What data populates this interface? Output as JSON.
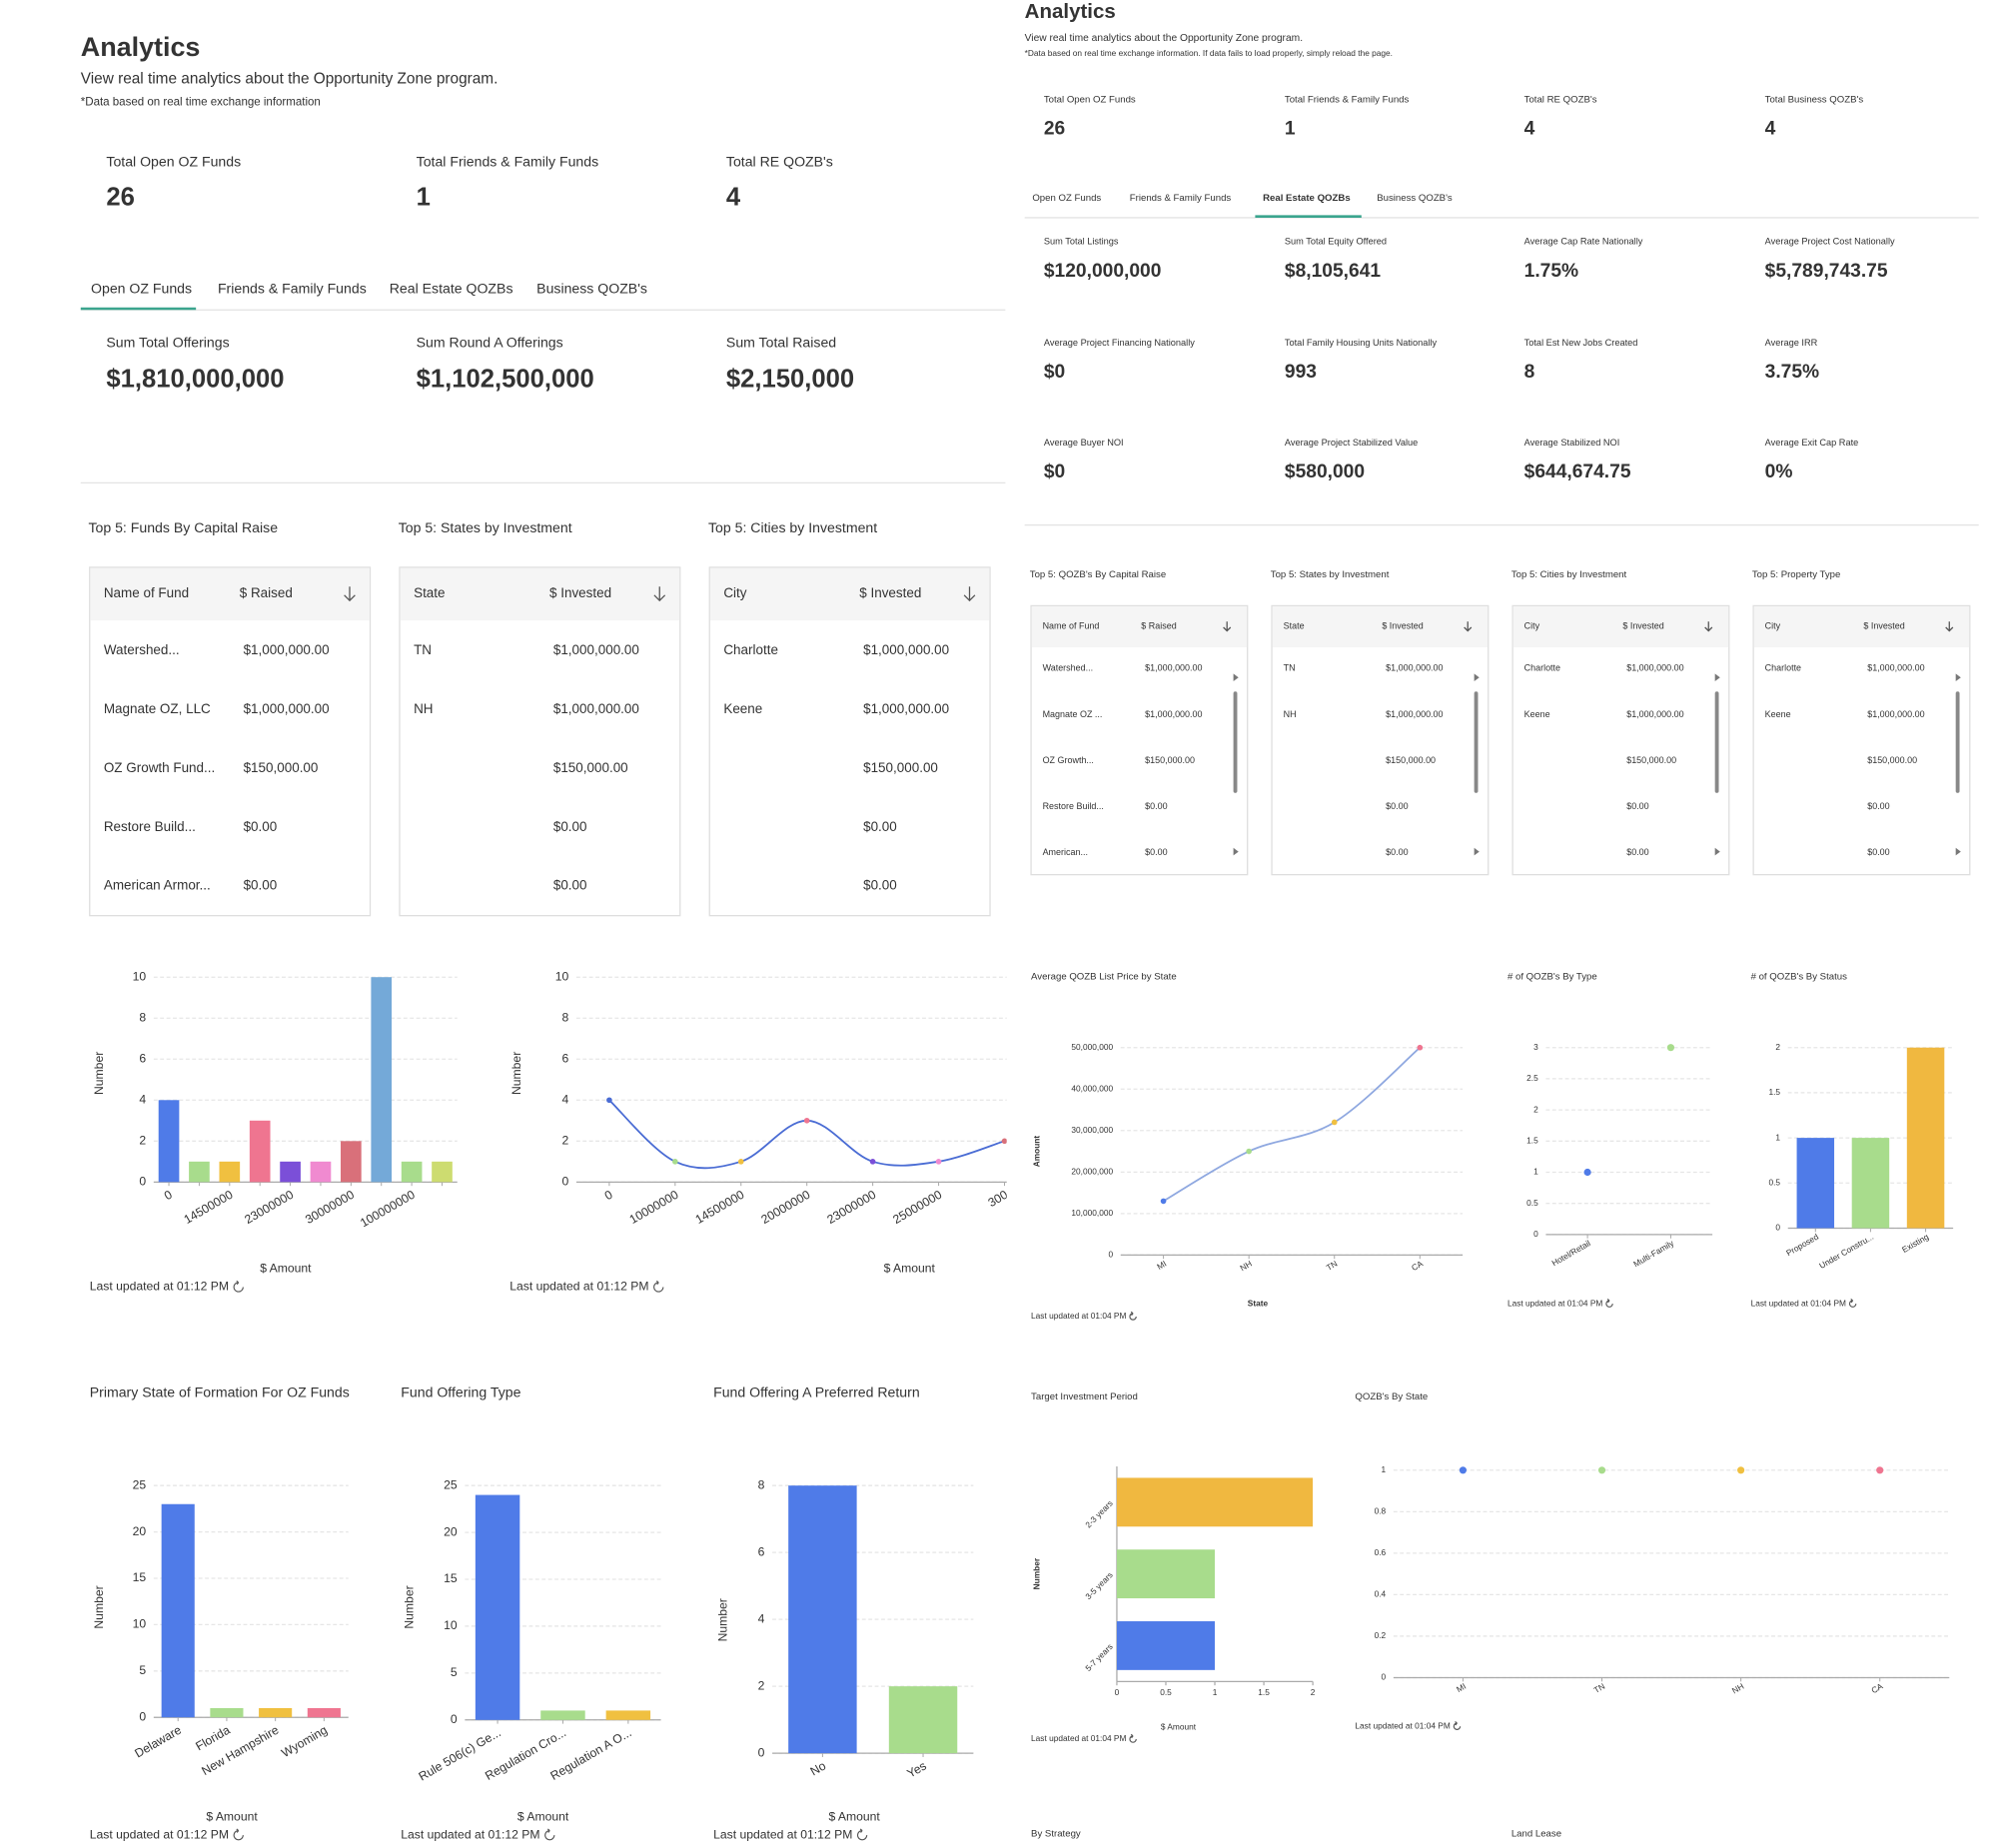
{
  "left": {
    "header": {
      "title": "Analytics",
      "subtitle": "View real time analytics about the Opportunity Zone program.",
      "note": "*Data based on real time exchange information"
    },
    "stats": [
      {
        "label": "Total Open OZ Funds",
        "value": 26
      },
      {
        "label": "Total Friends & Family Funds",
        "value": 1
      },
      {
        "label": "Total RE QOZB's",
        "value": 4
      }
    ],
    "tabs": [
      "Open OZ Funds",
      "Friends & Family Funds",
      "Real Estate QOZBs",
      "Business QOZB's"
    ],
    "metrics": [
      {
        "label": "Sum Total Offerings",
        "value": "$1,810,000,000"
      },
      {
        "label": "Sum Round A Offerings",
        "value": "$1,102,500,000"
      },
      {
        "label": "Sum Total Raised",
        "value": "$2,150,000"
      }
    ],
    "tables": [
      {
        "title": "Top 5: Funds By Capital Raise",
        "columns": [
          "Name of Fund",
          "$ Raised"
        ],
        "rows": [
          [
            "Watershed...",
            "$1,000,000.00"
          ],
          [
            "Magnate OZ, LLC",
            "$1,000,000.00"
          ],
          [
            "OZ Growth Fund...",
            "$150,000.00"
          ],
          [
            "Restore Build...",
            "$0.00"
          ],
          [
            "American Armor...",
            "$0.00"
          ]
        ]
      },
      {
        "title": "Top 5: States by Investment",
        "columns": [
          "State",
          "$ Invested"
        ],
        "rows": [
          [
            "TN",
            "$1,000,000.00"
          ],
          [
            "NH",
            "$1,000,000.00"
          ],
          [
            null,
            "$150,000.00"
          ],
          [
            null,
            "$0.00"
          ],
          [
            null,
            "$0.00"
          ]
        ]
      },
      {
        "title": "Top 5: Cities by Investment",
        "columns": [
          "City",
          "$ Invested"
        ],
        "rows": [
          [
            "Charlotte",
            "$1,000,000.00"
          ],
          [
            "Keene",
            "$1,000,000.00"
          ],
          [
            null,
            "$150,000.00"
          ],
          [
            null,
            "$0.00"
          ],
          [
            null,
            "$0.00"
          ]
        ]
      }
    ]
  },
  "right": {
    "header": {
      "title": "Analytics",
      "subtitle": "View real time analytics about the Opportunity Zone program.",
      "note": "*Data based on real time exchange information. If data fails to load properly, simply reload the page."
    },
    "stats": [
      {
        "label": "Total Open OZ Funds",
        "value": 26
      },
      {
        "label": "Total Friends & Family Funds",
        "value": 1
      },
      {
        "label": "Total RE QOZB's",
        "value": 4
      },
      {
        "label": "Total Business QOZB's",
        "value": 4
      }
    ],
    "tabs": [
      "Open OZ Funds",
      "Friends & Family Funds",
      "Real Estate QOZBs",
      "Business QOZB's"
    ],
    "metrics": [
      {
        "label": "Sum Total Listings",
        "value": "$120,000,000"
      },
      {
        "label": "Sum Total Equity Offered",
        "value": "$8,105,641"
      },
      {
        "label": "Average Cap Rate Nationally",
        "value": "1.75%"
      },
      {
        "label": "Average Project Cost Nationally",
        "value": "$5,789,743.75"
      },
      {
        "label": "Average Project Financing Nationally",
        "value": "$0"
      },
      {
        "label": "Total Family Housing Units Nationally",
        "value": "993"
      },
      {
        "label": "Total Est New Jobs Created",
        "value": "8"
      },
      {
        "label": "Average IRR",
        "value": "3.75%"
      },
      {
        "label": "Average Buyer NOI",
        "value": "$0"
      },
      {
        "label": "Average Project Stabilized Value",
        "value": "$580,000"
      },
      {
        "label": "Average Stabilized NOI",
        "value": "$644,674.75"
      },
      {
        "label": "Average Exit Cap Rate",
        "value": "0%"
      }
    ],
    "tables": [
      {
        "title": "Top 5: QOZB's By Capital Raise",
        "columns": [
          "Name of Fund",
          "$ Raised"
        ],
        "rows": [
          [
            "Watershed...",
            "$1,000,000.00"
          ],
          [
            "Magnate OZ ...",
            "$1,000,000.00"
          ],
          [
            "OZ Growth...",
            "$150,000.00"
          ],
          [
            "Restore Build...",
            "$0.00"
          ],
          [
            "American...",
            "$0.00"
          ]
        ]
      },
      {
        "title": "Top 5: States by Investment",
        "columns": [
          "State",
          "$ Invested"
        ],
        "rows": [
          [
            "TN",
            "$1,000,000.00"
          ],
          [
            "NH",
            "$1,000,000.00"
          ],
          [
            null,
            "$150,000.00"
          ],
          [
            null,
            "$0.00"
          ],
          [
            null,
            "$0.00"
          ]
        ]
      },
      {
        "title": "Top 5: Cities by Investment",
        "columns": [
          "City",
          "$ Invested"
        ],
        "rows": [
          [
            "Charlotte",
            "$1,000,000.00"
          ],
          [
            "Keene",
            "$1,000,000.00"
          ],
          [
            null,
            "$150,000.00"
          ],
          [
            null,
            "$0.00"
          ],
          [
            null,
            "$0.00"
          ]
        ]
      },
      {
        "title": "Top 5: Property Type",
        "columns": [
          "City",
          "$ Invested"
        ],
        "rows": [
          [
            "Charlotte",
            "$1,000,000.00"
          ],
          [
            "Keene",
            "$1,000,000.00"
          ],
          [
            null,
            "$150,000.00"
          ],
          [
            null,
            "$0.00"
          ],
          [
            null,
            "$0.00"
          ]
        ]
      }
    ],
    "sections": [
      "By Strategy",
      "Land Lease"
    ]
  },
  "chart_data": [
    {
      "type": "bar",
      "categories": [
        "0",
        null,
        "14500000",
        null,
        "23000000",
        null,
        "30000000",
        null,
        "100000000",
        null
      ],
      "values": [
        4,
        1,
        1,
        3,
        1,
        1,
        2,
        10,
        1,
        1
      ],
      "colors": [
        "#4f7be8",
        "#a8dc8c",
        "#f0c040",
        "#ef7590",
        "#7b4fd8",
        "#f08ad0",
        "#d9707a",
        "#74a9d8",
        "#a8dc8c",
        "#cddc70"
      ],
      "ylim": [
        0,
        10
      ],
      "yticks": [
        0,
        2,
        4,
        6,
        8,
        10
      ],
      "grid": true,
      "ylabel": "Number",
      "xlabel": "$ Amount",
      "footer": "Last updated at 01:12 PM"
    },
    {
      "type": "line",
      "categories": [
        "0",
        "10000000",
        "14500000",
        "20000000",
        "23000000",
        "25000000",
        "300"
      ],
      "values": [
        4,
        1,
        1,
        3,
        1,
        1,
        2
      ],
      "color": "#4a6cd4",
      "point_colors": [
        "#4a6cd4",
        "#a8dc8c",
        "#f0c040",
        "#ef7590",
        "#7b4fd8",
        "#f08ad0",
        "#d9707a"
      ],
      "ylim": [
        0,
        10
      ],
      "yticks": [
        0,
        2,
        4,
        6,
        8,
        10
      ],
      "grid": true,
      "ylabel": "Number",
      "xlabel": "$ Amount",
      "footer": "Last updated at 01:12 PM"
    },
    {
      "type": "bar",
      "title": "Primary State of Formation For OZ Funds",
      "categories": [
        "Delaware",
        "Florida",
        "New Hampshire",
        "Wyoming"
      ],
      "values": [
        23,
        1,
        1,
        1
      ],
      "colors": [
        "#4f7be8",
        "#a8dc8c",
        "#f0c040",
        "#ef7590"
      ],
      "ylim": [
        0,
        25
      ],
      "yticks": [
        0,
        5,
        10,
        15,
        20,
        25
      ],
      "grid": true,
      "ylabel": "Number",
      "xlabel": "$ Amount",
      "footer": "Last updated at 01:12 PM"
    },
    {
      "type": "bar",
      "title": "Fund Offering Type",
      "categories": [
        "Rule 506(c) Ge...",
        "Regulation Cro...",
        "Regulation A O..."
      ],
      "values": [
        24,
        1,
        1
      ],
      "colors": [
        "#4f7be8",
        "#a8dc8c",
        "#f0c040"
      ],
      "ylim": [
        0,
        25
      ],
      "yticks": [
        0,
        5,
        10,
        15,
        20,
        25
      ],
      "grid": true,
      "ylabel": "Number",
      "xlabel": "$ Amount",
      "footer": "Last updated at 01:12 PM"
    },
    {
      "type": "bar",
      "title": "Fund Offering A Preferred Return",
      "categories": [
        "No",
        "Yes"
      ],
      "values": [
        8,
        2
      ],
      "colors": [
        "#4f7be8",
        "#a8dc8c"
      ],
      "ylim": [
        0,
        8
      ],
      "yticks": [
        0,
        2,
        4,
        6,
        8
      ],
      "grid": true,
      "ylabel": "Number",
      "xlabel": "$ Amount",
      "footer": "Last updated at 01:12 PM"
    },
    {
      "type": "line",
      "title": "Average QOZB List Price by State",
      "categories": [
        "MI",
        "NH",
        "TN",
        "CA"
      ],
      "values": [
        13000000,
        25000000,
        32000000,
        50000000
      ],
      "color": "#8fa8e0",
      "point_colors": [
        "#4f7be8",
        "#a8dc8c",
        "#f0c040",
        "#ef7590"
      ],
      "ylim": [
        0,
        50000000
      ],
      "yticks": [
        0,
        {
          "value": 10000000,
          "label": "10,000,000"
        },
        {
          "value": 20000000,
          "label": "20,000,000"
        },
        {
          "value": 30000000,
          "label": "30,000,000"
        },
        {
          "value": 40000000,
          "label": "40,000,000"
        },
        {
          "value": 50000000,
          "label": "50,000,000"
        }
      ],
      "grid": true,
      "ylabel": "Amount",
      "xlabel": "State",
      "footer": "Last updated at 01:04 PM"
    },
    {
      "type": "scatter",
      "title": "# of QOZB's By Type",
      "categories": [
        "Hotel/Retail",
        "Multi-Family"
      ],
      "values": [
        1,
        3
      ],
      "colors": [
        "#4f7be8",
        "#a8dc8c"
      ],
      "ylim": [
        0,
        3
      ],
      "yticks": [
        0,
        0.5,
        1,
        1.5,
        2,
        2.5,
        3
      ],
      "grid": true,
      "footer": "Last updated at 01:04 PM"
    },
    {
      "type": "bar",
      "title": "# of QOZB's By Status",
      "categories": [
        "Proposed",
        "Under Constru...",
        "Existing"
      ],
      "values": [
        1,
        1,
        2
      ],
      "colors": [
        "#4f7be8",
        "#a8dc8c",
        "#f0b840"
      ],
      "ylim": [
        0,
        2
      ],
      "yticks": [
        0,
        0.5,
        1,
        1.5,
        2
      ],
      "grid": true,
      "footer": "Last updated at 01:04 PM"
    },
    {
      "type": "bar",
      "orientation": "horizontal",
      "title": "Target Investment Period",
      "categories": [
        "2-3 years",
        "3-5 years",
        "5-7 years"
      ],
      "values": [
        2,
        1,
        1
      ],
      "colors": [
        "#f0b840",
        "#a8dc8c",
        "#4f7be8"
      ],
      "xlim": [
        0,
        2
      ],
      "xticks": [
        0,
        0.5,
        1,
        1.5,
        2
      ],
      "grid": false,
      "ylabel": "Number",
      "xlabel": "$ Amount",
      "footer": "Last updated at 01:04 PM"
    },
    {
      "type": "scatter",
      "title": "QOZB's By State",
      "categories": [
        "MI",
        "TN",
        "NH",
        "CA"
      ],
      "values": [
        1,
        1,
        1,
        1
      ],
      "colors": [
        "#4f7be8",
        "#a8dc8c",
        "#f0c040",
        "#ef7590"
      ],
      "ylim": [
        0,
        1
      ],
      "yticks": [
        0,
        0.2,
        0.4,
        0.6,
        0.8,
        1
      ],
      "grid": true,
      "footer": "Last updated at 01:04 PM"
    }
  ]
}
